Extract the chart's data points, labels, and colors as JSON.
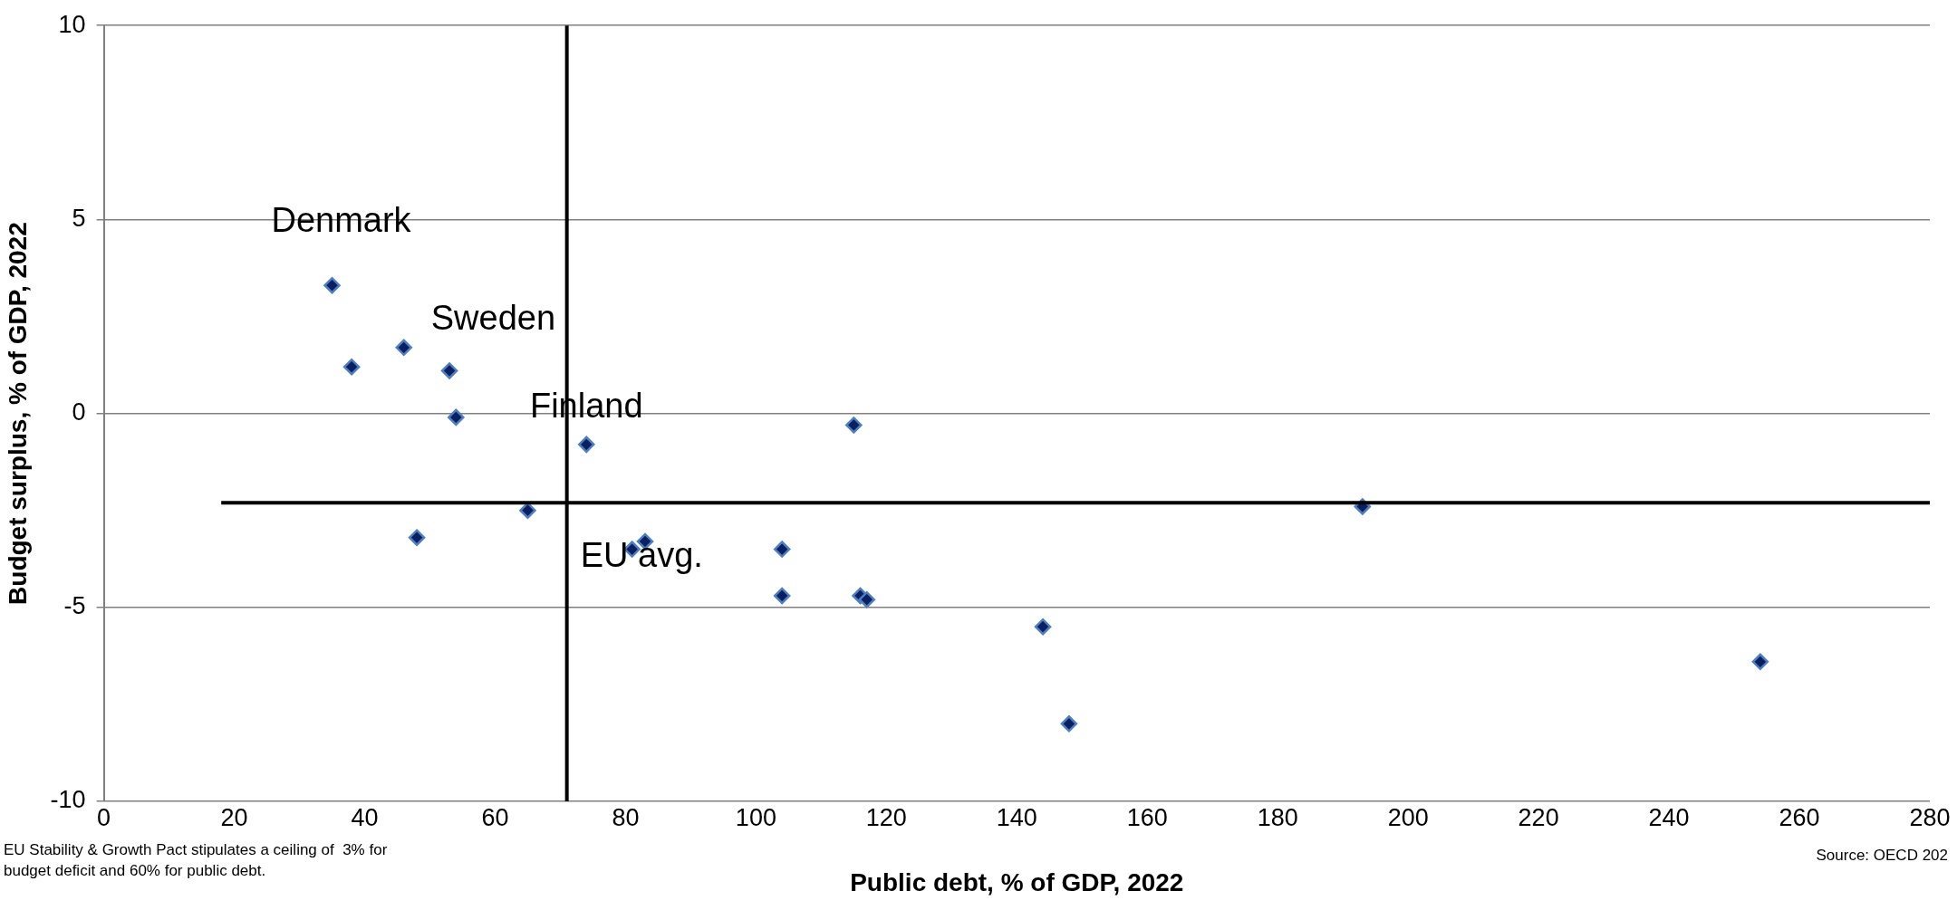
{
  "chart_data": {
    "type": "scatter",
    "xlabel": "Public debt, % of GDP, 2022",
    "ylabel": "Budget surplus, % of GDP, 2022",
    "series": [
      {
        "color": "#0b2060",
        "marker": "diamond",
        "x": [
          35,
          38,
          46,
          53,
          54,
          74,
          115,
          65,
          48,
          81,
          83,
          104,
          104,
          116,
          117,
          144,
          148,
          193,
          254
        ],
        "values": [
          3.3,
          1.2,
          1.7,
          1.1,
          -0.1,
          -0.8,
          -0.3,
          -2.5,
          -3.2,
          -3.5,
          -3.3,
          -3.5,
          -4.7,
          -4.7,
          -4.8,
          -5.5,
          -8,
          -2.4,
          -6.4
        ]
      }
    ],
    "xlim": [
      0,
      280
    ],
    "xticks": [
      0,
      20,
      40,
      60,
      80,
      100,
      120,
      140,
      160,
      180,
      200,
      220,
      240,
      260,
      280
    ],
    "ylim": [
      -10,
      10
    ],
    "yticks": [
      -10,
      -5,
      0,
      5,
      10
    ],
    "grid": "y",
    "legend": false,
    "ref_lines": [
      {
        "axis": "x",
        "value": 71,
        "color": "#000000"
      },
      {
        "axis": "y",
        "value": -2.3,
        "color": "#000000"
      }
    ],
    "annotations": [
      {
        "text": "Denmark",
        "x": 35,
        "y": 3.3
      },
      {
        "text": "Sweden",
        "x": 46,
        "y": 1.7
      },
      {
        "text": "Finland",
        "x": 74,
        "y": -0.8
      },
      {
        "text": "EU avg.",
        "x": 71,
        "y": -2.3
      },
      "EU Stability & Growth Pact stipulates a ceiling of  3% for budget deficit and 60% for public debt.",
      "Source: OECD 202"
    ]
  }
}
